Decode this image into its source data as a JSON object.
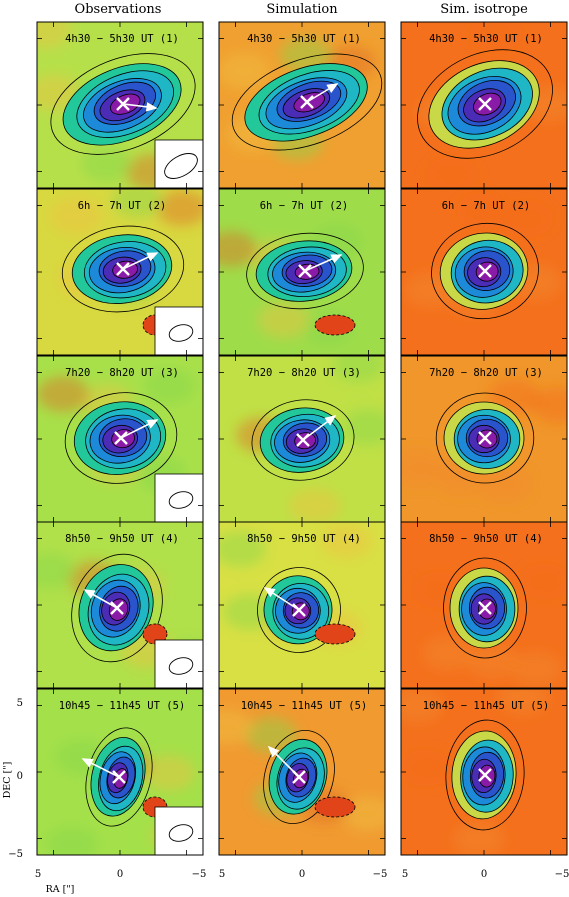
{
  "columns": [
    "Observations",
    "Simulation",
    "Sim. isotrope"
  ],
  "rows": [
    {
      "label": "4h30 − 5h30 UT (1)"
    },
    {
      "label": "6h − 7h UT (2)"
    },
    {
      "label": "7h20 − 8h20 UT (3)"
    },
    {
      "label": "8h50 − 9h50 UT (4)"
    },
    {
      "label": "10h45 − 11h45 UT (5)"
    }
  ],
  "axes": {
    "xlabel": "RA [\"]",
    "ylabel": "DEC [\"]",
    "xticks": [
      "5",
      "0",
      "−5"
    ],
    "yticks": [
      "5",
      "0",
      "−5"
    ]
  },
  "colors": {
    "background_obs": "#a9e34a",
    "background_iso": "#f4701c",
    "peak": "#8a1aa8",
    "contour": "#000000",
    "arrow": "#ffffff",
    "marker": "#ffffff"
  }
}
